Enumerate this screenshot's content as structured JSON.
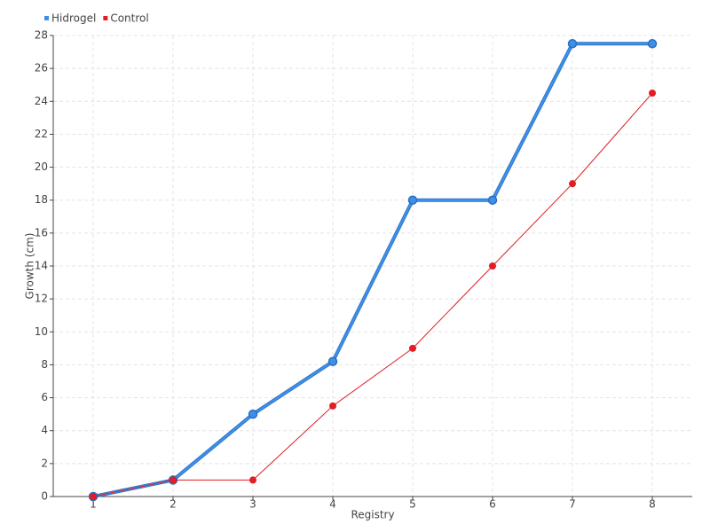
{
  "chart_data": {
    "type": "line",
    "x_label": "Registry",
    "y_label": "Growth (cm)",
    "categories": [
      "1",
      "2",
      "3",
      "4",
      "5",
      "6",
      "7",
      "8"
    ],
    "series": [
      {
        "name": "Hidrogel",
        "color": "#3d8fe8",
        "values": [
          0,
          1,
          5,
          8.2,
          18,
          18,
          27.5,
          27.5
        ]
      },
      {
        "name": "Control",
        "color": "#e01e24",
        "values": [
          0,
          1,
          1,
          5.5,
          9,
          14,
          19,
          24.5
        ]
      }
    ],
    "ylim": [
      0,
      28
    ],
    "yticks": [
      0,
      2,
      4,
      6,
      8,
      10,
      12,
      14,
      16,
      18,
      20,
      22,
      24,
      26,
      28
    ],
    "grid": true,
    "legend": "top-left"
  }
}
